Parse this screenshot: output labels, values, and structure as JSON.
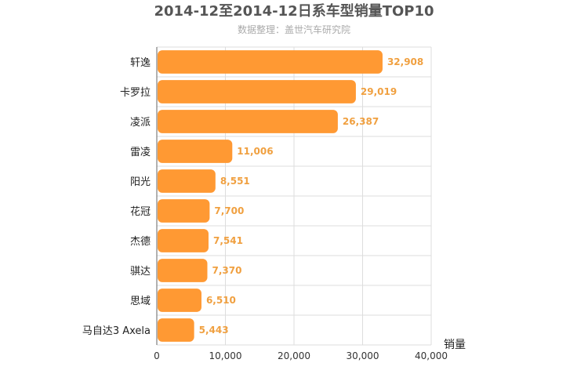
{
  "chart_data": {
    "type": "bar",
    "orientation": "horizontal",
    "title": "2014-12至2014-12日系车型销量TOP10",
    "subtitle": "数据整理：盖世汽车研究院",
    "categories": [
      "轩逸",
      "卡罗拉",
      "凌派",
      "雷凌",
      "阳光",
      "花冠",
      "杰德",
      "骐达",
      "思域",
      "马自达3 Axela"
    ],
    "values": [
      32908,
      29019,
      26387,
      11006,
      8551,
      7700,
      7541,
      7370,
      6510,
      5443
    ],
    "value_labels": [
      "32,908",
      "29,019",
      "26,387",
      "11,006",
      "8,551",
      "7,700",
      "7,541",
      "7,370",
      "6,510",
      "5,443"
    ],
    "xlabel": "销量",
    "ylabel": "",
    "xlim": [
      0,
      40000
    ],
    "xticks": [
      0,
      10000,
      20000,
      30000,
      40000
    ],
    "xtick_labels": [
      "0",
      "10,000",
      "20,000",
      "30,000",
      "40,000"
    ],
    "grid": true,
    "bar_color": "#ff9933",
    "value_label_color": "#f0a040"
  }
}
